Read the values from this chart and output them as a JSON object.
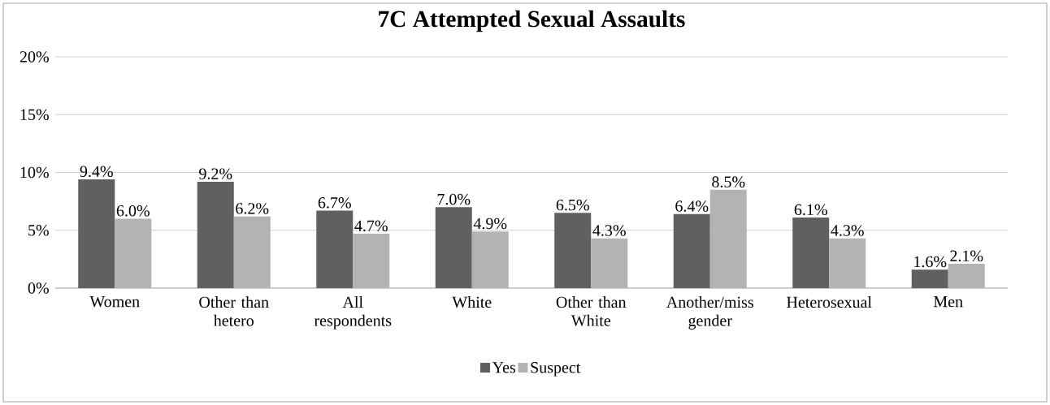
{
  "chart_data": {
    "type": "bar",
    "title": "7C Attempted Sexual Assaults",
    "categories": [
      "Women",
      "Other than hetero",
      "All respondents",
      "White",
      "Other than White",
      "Another/miss gender",
      "Heterosexual",
      "Men"
    ],
    "series": [
      {
        "name": "Yes",
        "color": "#606060",
        "values": [
          9.4,
          9.2,
          6.7,
          7.0,
          6.5,
          6.4,
          6.1,
          1.6
        ],
        "value_labels": [
          "9.4%",
          "9.2%",
          "6.7%",
          "7.0%",
          "6.5%",
          "6.4%",
          "6.1%",
          "1.6%"
        ]
      },
      {
        "name": "Suspect",
        "color": "#b3b3b3",
        "values": [
          6.0,
          6.2,
          4.7,
          4.9,
          4.3,
          8.5,
          4.3,
          2.1
        ],
        "value_labels": [
          "6.0%",
          "6.2%",
          "4.7%",
          "4.9%",
          "4.3%",
          "8.5%",
          "4.3%",
          "2.1%"
        ]
      }
    ],
    "ylim": [
      0,
      20
    ],
    "yticks": [
      {
        "value": 0,
        "label": "0%"
      },
      {
        "value": 5,
        "label": "5%"
      },
      {
        "value": 10,
        "label": "10%"
      },
      {
        "value": 15,
        "label": "15%"
      },
      {
        "value": 20,
        "label": "20%"
      }
    ],
    "grid": "y",
    "legend": "bottom"
  }
}
